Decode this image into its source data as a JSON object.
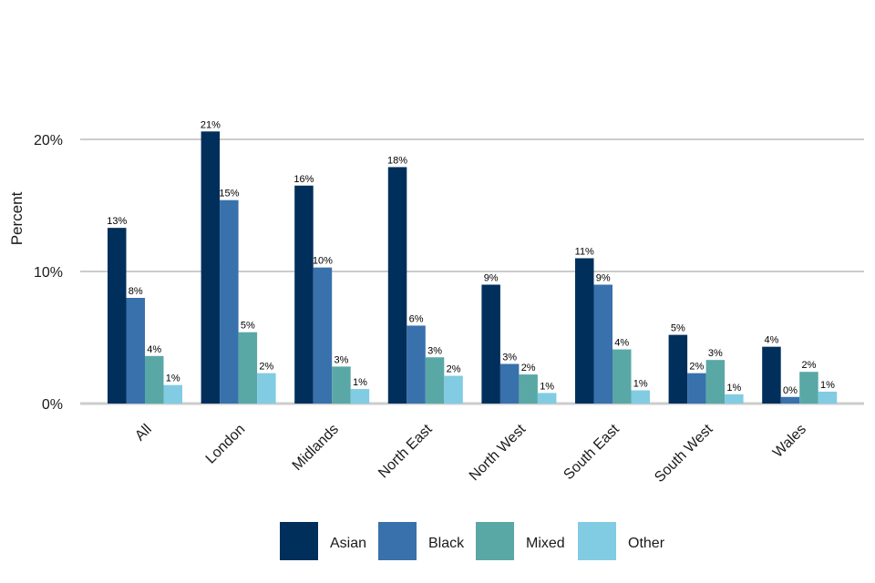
{
  "chart_data": {
    "type": "bar",
    "ylabel": "Percent",
    "ylim": [
      0,
      20
    ],
    "yticks": [
      {
        "value": 0,
        "label": "0%"
      },
      {
        "value": 10,
        "label": "10%"
      },
      {
        "value": 20,
        "label": "20%"
      }
    ],
    "grid": true,
    "legend_position": "bottom",
    "categories": [
      "All",
      "London",
      "Midlands",
      "North East",
      "North West",
      "South East",
      "South West",
      "Wales"
    ],
    "series": [
      {
        "name": "Asian",
        "color": "#002f5c",
        "values": [
          13.3,
          20.6,
          16.5,
          17.9,
          9.0,
          11.0,
          5.2,
          4.3
        ],
        "labels": [
          "13%",
          "21%",
          "16%",
          "18%",
          "9%",
          "11%",
          "5%",
          "4%"
        ]
      },
      {
        "name": "Black",
        "color": "#3871ac",
        "values": [
          8.0,
          15.4,
          10.3,
          5.9,
          3.0,
          9.0,
          2.3,
          0.5
        ],
        "labels": [
          "8%",
          "15%",
          "10%",
          "6%",
          "3%",
          "9%",
          "2%",
          "0%"
        ]
      },
      {
        "name": "Mixed",
        "color": "#59a8a5",
        "values": [
          3.6,
          5.4,
          2.8,
          3.5,
          2.2,
          4.1,
          3.3,
          2.4
        ],
        "labels": [
          "4%",
          "5%",
          "3%",
          "3%",
          "2%",
          "4%",
          "3%",
          "2%"
        ]
      },
      {
        "name": "Other",
        "color": "#81cbe3",
        "values": [
          1.4,
          2.3,
          1.1,
          2.1,
          0.8,
          1.0,
          0.7,
          0.9
        ],
        "labels": [
          "1%",
          "2%",
          "1%",
          "2%",
          "1%",
          "1%",
          "1%",
          "1%"
        ]
      }
    ]
  }
}
